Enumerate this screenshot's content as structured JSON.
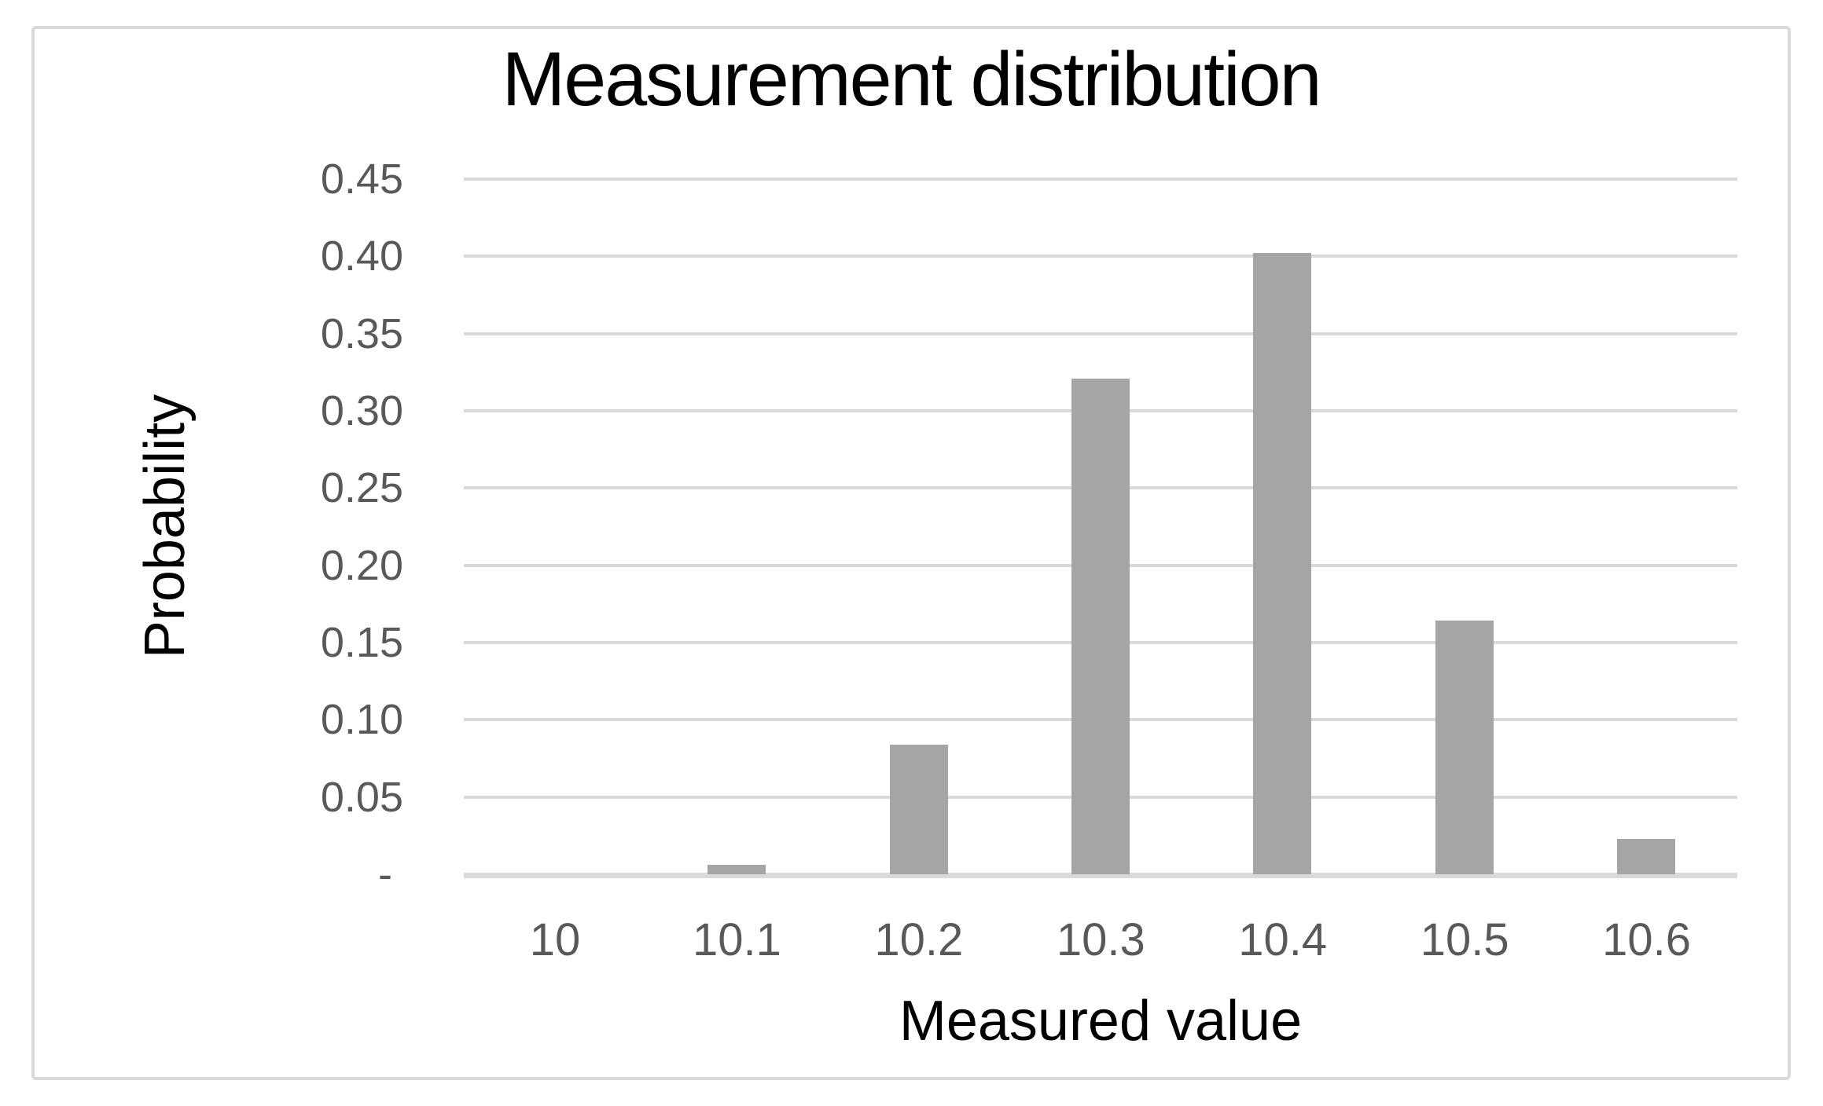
{
  "chart_data": {
    "type": "bar",
    "title": "Measurement distribution",
    "xlabel": "Measured value",
    "ylabel": "Probability",
    "categories": [
      "10",
      "10.1",
      "10.2",
      "10.3",
      "10.4",
      "10.5",
      "10.6"
    ],
    "values": [
      0.0,
      0.006,
      0.084,
      0.321,
      0.402,
      0.164,
      0.023
    ],
    "ylim": [
      0,
      0.45
    ],
    "ytick_step": 0.05,
    "ytick_labels": [
      "-",
      "0.05",
      "0.10",
      "0.15",
      "0.20",
      "0.25",
      "0.30",
      "0.35",
      "0.40",
      "0.45"
    ],
    "zero_label": "-",
    "grid": true,
    "legend_position": "none",
    "bar_color": "#a5a5a5",
    "gridline_color": "#d9d9d9",
    "axis_line_color": "#d9d9d9",
    "tick_label_color": "#595959",
    "title_color": "#000000",
    "axis_title_color": "#000000",
    "frame_border_color": "#d9d9d9",
    "background_color": "#ffffff"
  }
}
